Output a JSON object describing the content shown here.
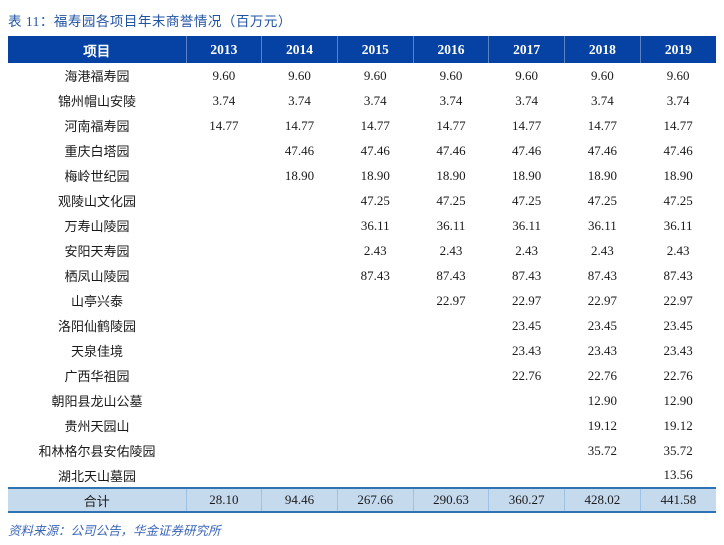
{
  "title": "表 11：福寿园各项目年末商誉情况（百万元）",
  "source": "资料来源：公司公告，华金证券研究所",
  "colors": {
    "header_bg": "#0642A3",
    "header_text": "#FFFFFF",
    "total_row_bg": "#C6DAEE",
    "total_row_border": "#2E74B5",
    "title_text": "#2153A4",
    "source_text": "#3A66B8",
    "body_text": "#1A1A1A"
  },
  "table": {
    "columns": [
      "项目",
      "2013",
      "2014",
      "2015",
      "2016",
      "2017",
      "2018",
      "2019"
    ],
    "rows": [
      {
        "project": "海港福寿园",
        "values": [
          "9.60",
          "9.60",
          "9.60",
          "9.60",
          "9.60",
          "9.60",
          "9.60"
        ]
      },
      {
        "project": "锦州帽山安陵",
        "values": [
          "3.74",
          "3.74",
          "3.74",
          "3.74",
          "3.74",
          "3.74",
          "3.74"
        ]
      },
      {
        "project": "河南福寿园",
        "values": [
          "14.77",
          "14.77",
          "14.77",
          "14.77",
          "14.77",
          "14.77",
          "14.77"
        ]
      },
      {
        "project": "重庆白塔园",
        "values": [
          "",
          "47.46",
          "47.46",
          "47.46",
          "47.46",
          "47.46",
          "47.46"
        ]
      },
      {
        "project": "梅岭世纪园",
        "values": [
          "",
          "18.90",
          "18.90",
          "18.90",
          "18.90",
          "18.90",
          "18.90"
        ]
      },
      {
        "project": "观陵山文化园",
        "values": [
          "",
          "",
          "47.25",
          "47.25",
          "47.25",
          "47.25",
          "47.25"
        ]
      },
      {
        "project": "万寿山陵园",
        "values": [
          "",
          "",
          "36.11",
          "36.11",
          "36.11",
          "36.11",
          "36.11"
        ]
      },
      {
        "project": "安阳天寿园",
        "values": [
          "",
          "",
          "2.43",
          "2.43",
          "2.43",
          "2.43",
          "2.43"
        ]
      },
      {
        "project": "栖凤山陵园",
        "values": [
          "",
          "",
          "87.43",
          "87.43",
          "87.43",
          "87.43",
          "87.43"
        ]
      },
      {
        "project": "山亭兴泰",
        "values": [
          "",
          "",
          "",
          "22.97",
          "22.97",
          "22.97",
          "22.97"
        ]
      },
      {
        "project": "洛阳仙鹤陵园",
        "values": [
          "",
          "",
          "",
          "",
          "23.45",
          "23.45",
          "23.45"
        ]
      },
      {
        "project": "天泉佳境",
        "values": [
          "",
          "",
          "",
          "",
          "23.43",
          "23.43",
          "23.43"
        ]
      },
      {
        "project": "广西华祖园",
        "values": [
          "",
          "",
          "",
          "",
          "22.76",
          "22.76",
          "22.76"
        ]
      },
      {
        "project": "朝阳县龙山公墓",
        "values": [
          "",
          "",
          "",
          "",
          "",
          "12.90",
          "12.90"
        ]
      },
      {
        "project": "贵州天园山",
        "values": [
          "",
          "",
          "",
          "",
          "",
          "19.12",
          "19.12"
        ]
      },
      {
        "project": "和林格尔县安佑陵园",
        "values": [
          "",
          "",
          "",
          "",
          "",
          "35.72",
          "35.72"
        ]
      },
      {
        "project": "湖北天山墓园",
        "values": [
          "",
          "",
          "",
          "",
          "",
          "",
          "13.56"
        ]
      }
    ],
    "total": {
      "label": "合计",
      "values": [
        "28.10",
        "94.46",
        "267.66",
        "290.63",
        "360.27",
        "428.02",
        "441.58"
      ]
    }
  }
}
